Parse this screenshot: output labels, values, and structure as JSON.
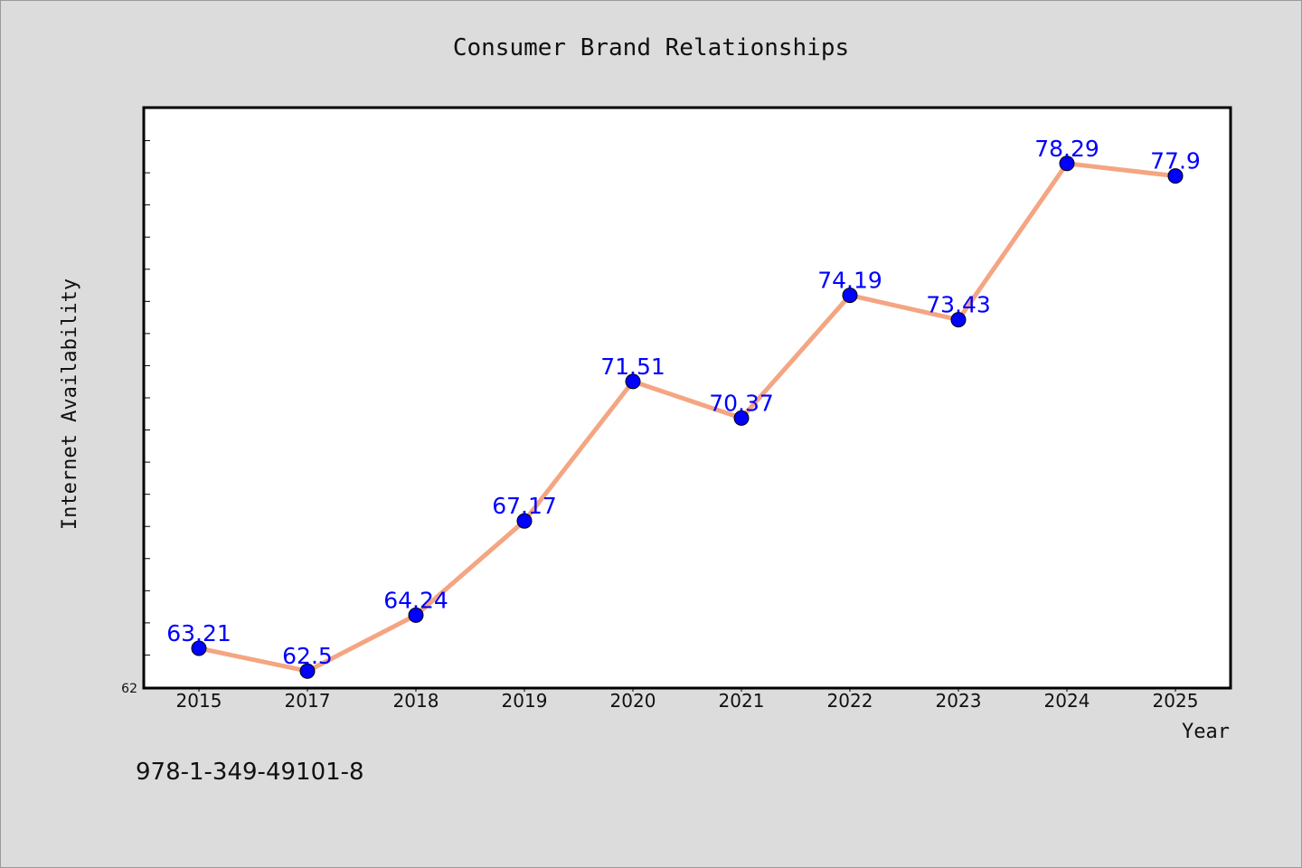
{
  "chart_data": {
    "type": "line",
    "title": "Consumer Brand Relationships",
    "xlabel": "Year",
    "ylabel": "Internet Availability",
    "categories": [
      "2015",
      "2017",
      "2018",
      "2019",
      "2020",
      "2021",
      "2022",
      "2023",
      "2024",
      "2025"
    ],
    "series": [
      {
        "values": [
          63.21,
          62.5,
          64.24,
          67.17,
          71.51,
          70.37,
          74.19,
          73.43,
          78.29,
          77.9
        ],
        "labels": [
          "63.21",
          "62.5",
          "64.24",
          "67.17",
          "71.51",
          "70.37",
          "74.19",
          "73.43",
          "78.29",
          "77.9"
        ],
        "line_color": "#f4a582",
        "marker_color": "#0000ff"
      }
    ],
    "yticks": [
      "62"
    ],
    "ylim": [
      62,
      80
    ],
    "grid": false,
    "legend": "none"
  },
  "footer_text": "978-1-349-49101-8"
}
